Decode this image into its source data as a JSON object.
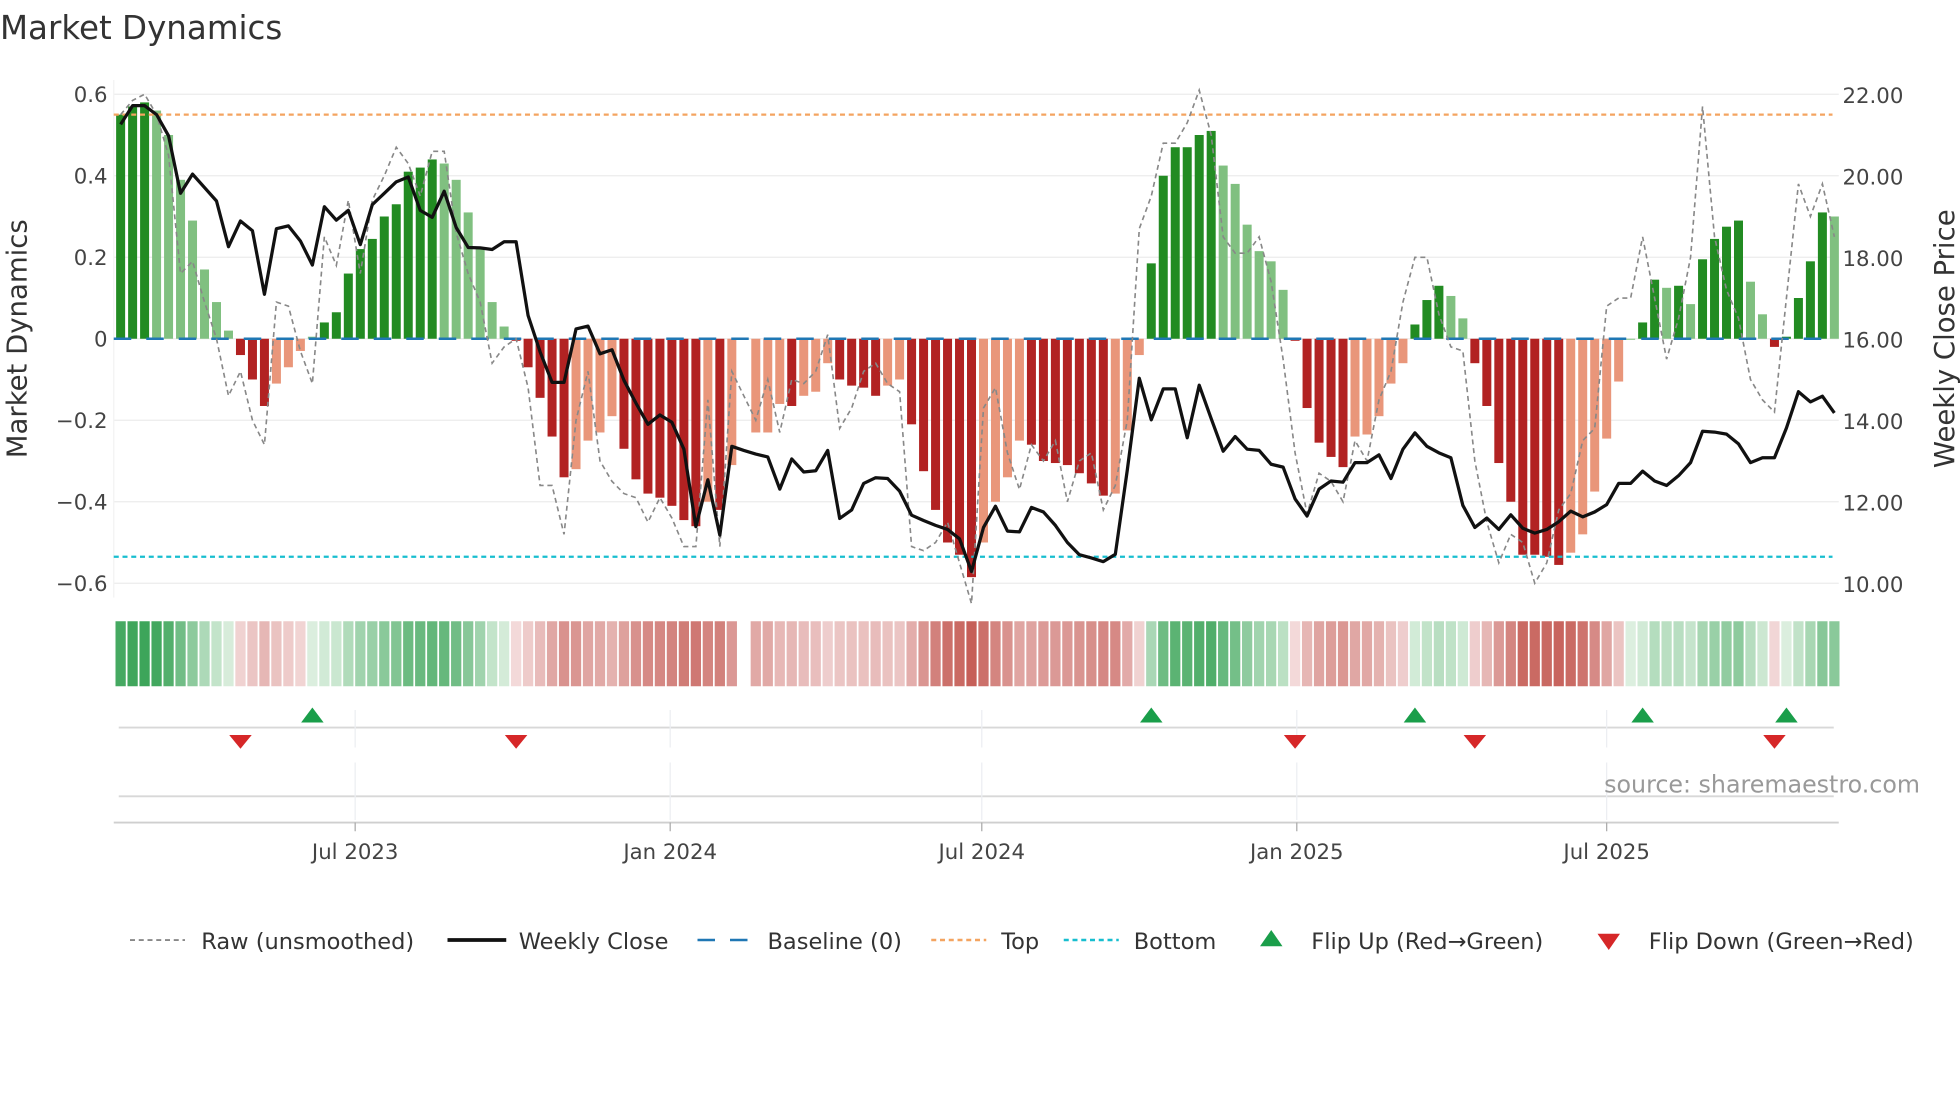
{
  "chart_data": {
    "type": "bar",
    "title": "Market Dynamics",
    "ylabel": "Market Dynamics",
    "y2label": "Weekly Close Price",
    "ylim": [
      -0.65,
      0.63
    ],
    "y2lim": [
      9.5,
      22.3
    ],
    "yticks": [
      {
        "v": 0.6,
        "label": "0.6"
      },
      {
        "v": 0.4,
        "label": "0.4"
      },
      {
        "v": 0.2,
        "label": "0.2"
      },
      {
        "v": 0,
        "label": "0"
      },
      {
        "v": -0.2,
        "label": "−0.2"
      },
      {
        "v": -0.4,
        "label": "−0.4"
      },
      {
        "v": -0.6,
        "label": "−0.6"
      }
    ],
    "y2ticks": [
      {
        "v": 22,
        "label": "22.00"
      },
      {
        "v": 20,
        "label": "20.00"
      },
      {
        "v": 18,
        "label": "18.00"
      },
      {
        "v": 16,
        "label": "16.00"
      },
      {
        "v": 14,
        "label": "14.00"
      },
      {
        "v": 12,
        "label": "12.00"
      },
      {
        "v": 10,
        "label": "10.00"
      }
    ],
    "xticks": [
      {
        "date": "2023-07-01",
        "label": "Jul 2023"
      },
      {
        "date": "2024-01-01",
        "label": "Jan 2024"
      },
      {
        "date": "2024-07-01",
        "label": "Jul 2024"
      },
      {
        "date": "2025-01-01",
        "label": "Jan 2025"
      },
      {
        "date": "2025-07-01",
        "label": "Jul 2025"
      }
    ],
    "start_date": "2023-02-14",
    "frequency": "weekly",
    "top_level": 0.55,
    "bottom_level": -0.535,
    "baseline": 0,
    "series": [
      {
        "name": "Market Dynamics (smoothed)",
        "kind": "bar",
        "values": [
          0.55,
          0.57,
          0.58,
          0.56,
          0.5,
          0.39,
          0.29,
          0.17,
          0.09,
          0.02,
          -0.04,
          -0.1,
          -0.165,
          -0.11,
          -0.07,
          -0.03,
          0.005,
          0.04,
          0.065,
          0.16,
          0.22,
          0.245,
          0.3,
          0.33,
          0.41,
          0.42,
          0.44,
          0.43,
          0.39,
          0.31,
          0.22,
          0.09,
          0.03,
          -0.005,
          -0.07,
          -0.145,
          -0.24,
          -0.34,
          -0.32,
          -0.25,
          -0.23,
          -0.19,
          -0.27,
          -0.345,
          -0.38,
          -0.39,
          -0.41,
          -0.445,
          -0.46,
          -0.4,
          -0.42,
          -0.31,
          null,
          -0.23,
          -0.23,
          -0.16,
          -0.165,
          -0.14,
          -0.13,
          -0.06,
          -0.1,
          -0.115,
          -0.12,
          -0.14,
          -0.115,
          -0.1,
          -0.21,
          -0.325,
          -0.42,
          -0.5,
          -0.53,
          -0.585,
          -0.5,
          -0.4,
          -0.34,
          -0.25,
          -0.26,
          -0.3,
          -0.305,
          -0.31,
          -0.33,
          -0.355,
          -0.385,
          -0.38,
          -0.225,
          -0.04,
          0.185,
          0.4,
          0.47,
          0.47,
          0.5,
          0.51,
          0.425,
          0.38,
          0.28,
          0.215,
          0.19,
          0.12,
          -0.005,
          -0.17,
          -0.255,
          -0.29,
          -0.315,
          -0.24,
          -0.235,
          -0.19,
          -0.11,
          -0.06,
          0.035,
          0.095,
          0.13,
          0.105,
          0.05,
          -0.06,
          -0.165,
          -0.305,
          -0.4,
          -0.53,
          -0.53,
          -0.535,
          -0.555,
          -0.525,
          -0.48,
          -0.375,
          -0.245,
          -0.105,
          0.0,
          0.04,
          0.145,
          0.125,
          0.13,
          0.085,
          0.195,
          0.245,
          0.275,
          0.29,
          0.14,
          0.06,
          -0.02,
          0.005,
          0.1,
          0.19,
          0.31,
          0.3
        ],
        "shade": "DDDLLLLLLLDDDLLLLDDDDDDDDDDLLLLLLDDDDDLLLLDDDDDDDLDL-LLLDLLLDDDDLLDDDDDDLLLLDDDDDDDLLLDDDDDDLLLLLLDDDDDLLLLLDDDLLDDDDDDDDLLLLLLDDLDLDDDDLLDDDDDL"
      },
      {
        "name": "Raw (unsmoothed)",
        "kind": "line",
        "values": [
          0.55,
          0.585,
          0.6,
          0.55,
          0.45,
          0.16,
          0.19,
          0.09,
          0.0,
          -0.14,
          -0.08,
          -0.2,
          -0.26,
          0.09,
          0.08,
          -0.03,
          -0.11,
          0.25,
          0.18,
          0.34,
          0.16,
          0.34,
          0.4,
          0.47,
          0.43,
          0.35,
          0.46,
          0.46,
          0.26,
          0.16,
          0.09,
          -0.06,
          -0.02,
          0.0,
          -0.12,
          -0.36,
          -0.36,
          -0.48,
          -0.2,
          -0.08,
          -0.3,
          -0.35,
          -0.38,
          -0.39,
          -0.45,
          -0.39,
          -0.44,
          -0.51,
          -0.51,
          -0.15,
          -0.51,
          -0.08,
          -0.14,
          -0.2,
          -0.1,
          -0.23,
          -0.1,
          -0.11,
          -0.08,
          0.01,
          -0.22,
          -0.17,
          -0.08,
          -0.06,
          -0.11,
          -0.13,
          -0.51,
          -0.52,
          -0.5,
          -0.45,
          -0.55,
          -0.65,
          -0.17,
          -0.12,
          -0.28,
          -0.37,
          -0.26,
          -0.3,
          -0.25,
          -0.4,
          -0.3,
          -0.28,
          -0.42,
          -0.36,
          -0.2,
          0.27,
          0.35,
          0.48,
          0.48,
          0.53,
          0.61,
          0.5,
          0.25,
          0.21,
          0.21,
          0.25,
          0.14,
          -0.05,
          -0.28,
          -0.43,
          -0.33,
          -0.35,
          -0.4,
          -0.25,
          -0.3,
          -0.15,
          -0.08,
          0.09,
          0.2,
          0.2,
          0.06,
          -0.02,
          -0.03,
          -0.3,
          -0.45,
          -0.55,
          -0.48,
          -0.5,
          -0.6,
          -0.55,
          -0.42,
          -0.38,
          -0.25,
          -0.22,
          0.08,
          0.1,
          0.1,
          0.25,
          0.1,
          -0.05,
          0.05,
          0.2,
          0.57,
          0.25,
          0.12,
          0.05,
          -0.1,
          -0.15,
          -0.18,
          0.1,
          0.38,
          0.3,
          0.38,
          0.25
        ]
      },
      {
        "name": "Weekly Close",
        "kind": "line",
        "axis": "right",
        "values": [
          21.26,
          21.72,
          21.72,
          21.5,
          20.98,
          19.57,
          20.04,
          19.71,
          19.38,
          18.26,
          18.89,
          18.65,
          17.09,
          18.7,
          18.77,
          18.4,
          17.81,
          19.24,
          18.91,
          19.15,
          18.31,
          19.29,
          19.57,
          19.85,
          19.97,
          19.15,
          18.98,
          19.62,
          18.73,
          18.24,
          18.23,
          18.19,
          18.38,
          18.38,
          16.57,
          15.68,
          14.93,
          14.93,
          16.24,
          16.31,
          15.63,
          15.73,
          14.98,
          14.42,
          13.9,
          14.13,
          13.95,
          13.29,
          11.39,
          12.54,
          11.18,
          13.36,
          13.26,
          13.17,
          13.1,
          12.31,
          13.05,
          12.73,
          12.76,
          13.26,
          11.59,
          11.8,
          12.45,
          12.59,
          12.57,
          12.26,
          11.67,
          11.54,
          11.42,
          11.32,
          11.09,
          10.29,
          11.37,
          11.89,
          11.28,
          11.26,
          11.86,
          11.75,
          11.42,
          11.0,
          10.7,
          10.62,
          10.53,
          10.71,
          12.78,
          15.03,
          14.01,
          14.77,
          14.77,
          13.57,
          14.86,
          14.04,
          13.24,
          13.6,
          13.29,
          13.26,
          12.92,
          12.85,
          12.07,
          11.65,
          12.31,
          12.51,
          12.48,
          12.96,
          12.96,
          13.15,
          12.57,
          13.29,
          13.69,
          13.36,
          13.2,
          13.08,
          11.91,
          11.37,
          11.6,
          11.32,
          11.68,
          11.35,
          11.23,
          11.32,
          11.51,
          11.77,
          11.63,
          11.75,
          11.93,
          12.45,
          12.45,
          12.75,
          12.51,
          12.4,
          12.64,
          12.96,
          13.73,
          13.71,
          13.66,
          13.42,
          12.96,
          13.08,
          13.08,
          13.81,
          14.7,
          14.45,
          14.59,
          14.18
        ]
      }
    ],
    "flip_up_weeks": [
      16,
      86,
      108,
      127,
      139
    ],
    "flip_down_weeks": [
      10,
      33,
      98,
      113,
      138
    ],
    "legend": {
      "placement": "bottom",
      "items": [
        "Raw (unsmoothed)",
        "Weekly Close",
        "Baseline (0)",
        "Top",
        "Bottom",
        "Flip Up (Red→Green)",
        "Flip Down (Green→Red)"
      ]
    },
    "source": "source: sharemaestro.com",
    "colors": {
      "strong_green": "#228b22",
      "weak_green": "#80c080",
      "strong_red": "#b22222",
      "weak_red": "#e9967a",
      "baseline": "#1f77b4",
      "top": "#f4a460",
      "bottom": "#17becf",
      "raw": "#888888",
      "close": "#111111",
      "flip_up": "#1a9e4a",
      "flip_down": "#d62728"
    }
  }
}
